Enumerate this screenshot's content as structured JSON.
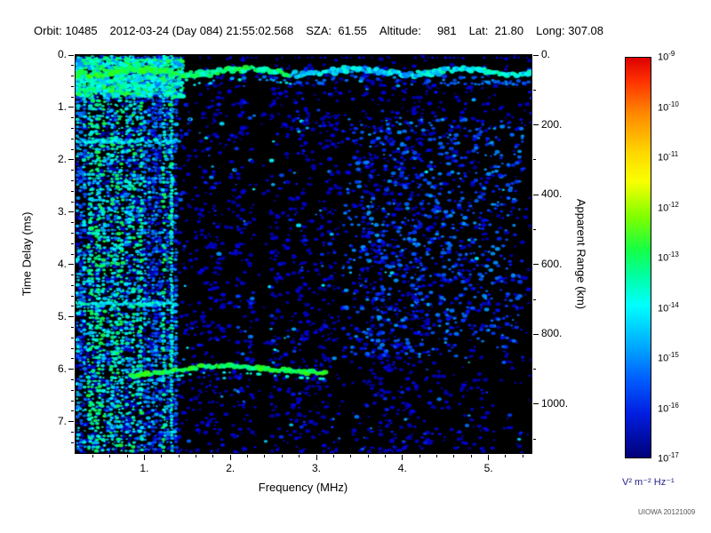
{
  "header": {
    "segments": [
      "Orbit: 10485",
      "2012-03-24 (Day 084) 21:55:02.568",
      "SZA:  61.55",
      "Altitude:     981",
      "Lat:  21.80",
      "Long: 307.08"
    ]
  },
  "footer": {
    "credit": "UIOWA 20121009"
  },
  "chart_data": {
    "type": "heatmap",
    "xlabel": "Frequency (MHz)",
    "ylabel_left": "Time Delay (ms)",
    "ylabel_right": "Apparent Range (km)",
    "x_range_mhz": [
      0.2,
      5.5
    ],
    "y_range_ms": [
      0.0,
      7.6
    ],
    "x_major_tick_values": [
      1,
      2,
      3,
      4,
      5
    ],
    "x_major_tick_labels": [
      "1.",
      "2.",
      "3.",
      "4.",
      "5."
    ],
    "y_major_tick_values": [
      0,
      1,
      2,
      3,
      4,
      5,
      6,
      7
    ],
    "y_major_tick_labels": [
      "0.",
      "1.",
      "2.",
      "3.",
      "4.",
      "5.",
      "6.",
      "7."
    ],
    "right_tick_values_km": [
      0,
      200,
      400,
      600,
      800,
      1000
    ],
    "right_tick_labels": [
      "0.",
      "200.",
      "400.",
      "600.",
      "800.",
      "1000."
    ],
    "km_per_ms": 150,
    "background_color": "#000000",
    "colorbar": {
      "scale": "log",
      "exponents": [
        -9,
        -10,
        -11,
        -12,
        -13,
        -14,
        -15,
        -16,
        -17
      ],
      "unit_label": "V² m⁻² Hz⁻¹",
      "unit_color": "#22228a",
      "gradient": [
        {
          "pos": 0.0,
          "color": "#dd0000"
        },
        {
          "pos": 0.06,
          "color": "#ff3300"
        },
        {
          "pos": 0.14,
          "color": "#ff8800"
        },
        {
          "pos": 0.24,
          "color": "#ffd900"
        },
        {
          "pos": 0.31,
          "color": "#f8ff00"
        },
        {
          "pos": 0.4,
          "color": "#7dff00"
        },
        {
          "pos": 0.48,
          "color": "#15ff45"
        },
        {
          "pos": 0.55,
          "color": "#00ffa8"
        },
        {
          "pos": 0.62,
          "color": "#00ffff"
        },
        {
          "pos": 0.72,
          "color": "#00aaff"
        },
        {
          "pos": 0.8,
          "color": "#0061ff"
        },
        {
          "pos": 0.89,
          "color": "#001ee0"
        },
        {
          "pos": 1.0,
          "color": "#000078"
        }
      ]
    },
    "features": {
      "surface_reflection_band_ms": 0.32,
      "secondary_band_right_ms": 0.55,
      "transmit_row_ms": 0.05,
      "electron_plasma_harmonics_region_mhz": [
        0.2,
        1.38
      ],
      "plasma_line_mhz": 1.32,
      "left_horizontal_lines_ms": [
        1.65,
        4.75
      ],
      "ground_echo_trace_ms": 6.0,
      "ground_echo_region_mhz": [
        0.85,
        3.1
      ],
      "noise_gap_regions_mhz": [
        [
          2.28,
          2.47
        ],
        [
          3.28,
          3.5
        ]
      ]
    }
  }
}
